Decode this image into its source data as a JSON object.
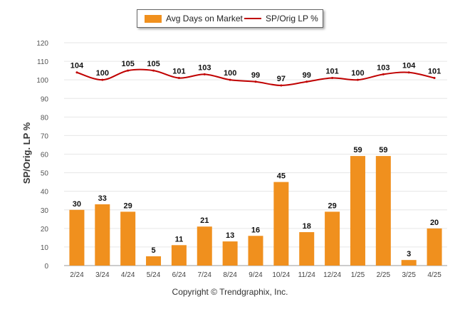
{
  "chart_data": {
    "type": "bar",
    "categories": [
      "2/24",
      "3/24",
      "4/24",
      "5/24",
      "6/24",
      "7/24",
      "8/24",
      "9/24",
      "10/24",
      "11/24",
      "12/24",
      "1/25",
      "2/25",
      "3/25",
      "4/25"
    ],
    "series": [
      {
        "name": "Avg Days on Market",
        "type": "bar",
        "color": "#f0901e",
        "values": [
          30,
          33,
          29,
          5,
          11,
          21,
          13,
          16,
          45,
          18,
          29,
          59,
          59,
          3,
          20
        ]
      },
      {
        "name": "SP/Orig LP %",
        "type": "line",
        "color": "#c00000",
        "values": [
          104,
          100,
          105,
          105,
          101,
          103,
          100,
          99,
          97,
          99,
          101,
          100,
          103,
          104,
          101
        ]
      }
    ],
    "ylabel": "SP/Orig. LP %",
    "xlabel": "",
    "ylim": [
      0,
      120
    ],
    "yticks": [
      0,
      10,
      20,
      30,
      40,
      50,
      60,
      70,
      80,
      90,
      100,
      110,
      120
    ],
    "grid": true,
    "legend_position": "top-center"
  },
  "legend": {
    "bar_label": "Avg Days on Market",
    "line_label": "SP/Orig LP %"
  },
  "footer": {
    "copyright": "Copyright © Trendgraphix, Inc."
  }
}
